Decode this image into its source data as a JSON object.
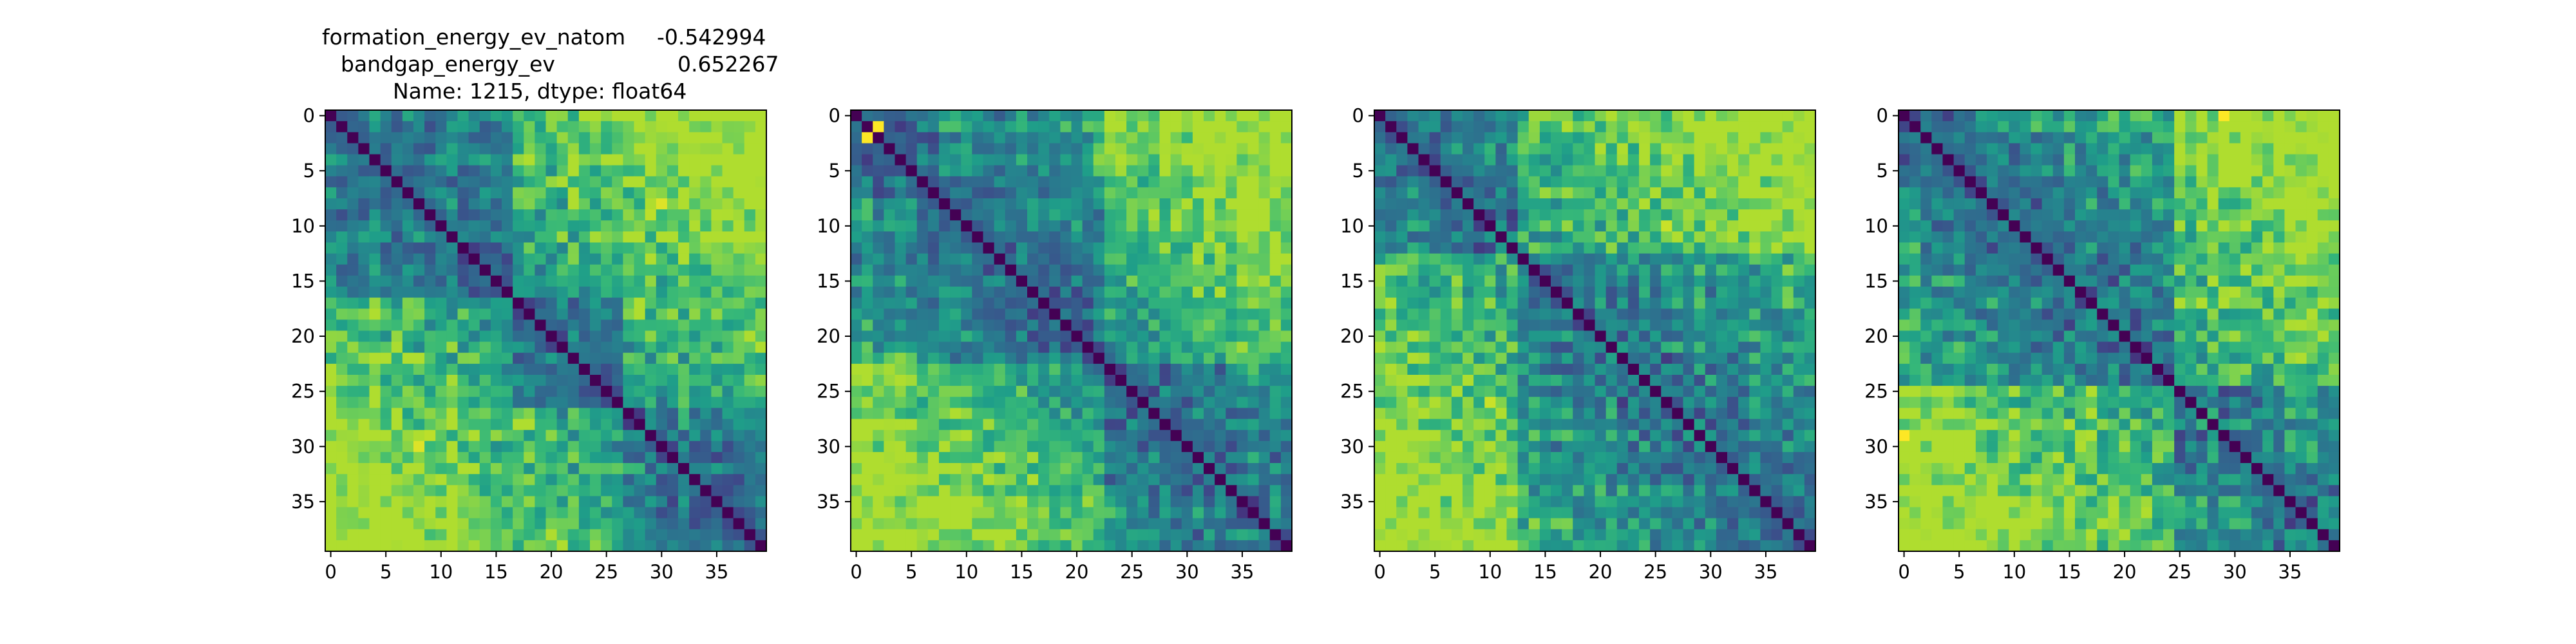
{
  "title": {
    "line1_label": "formation_energy_ev_natom",
    "line1_value": "-0.542994",
    "line2_label": "bandgap_energy_ev",
    "line2_value": "0.652267",
    "line3": "Name: 1215, dtype: float64"
  },
  "colormap": {
    "name": "viridis",
    "stops": [
      "#440154",
      "#482878",
      "#3e4989",
      "#31688e",
      "#26828e",
      "#1f9e89",
      "#35b779",
      "#6ece58",
      "#b5de2b",
      "#fde725"
    ]
  },
  "chart_data": [
    {
      "type": "heatmap",
      "size": 40,
      "diagonal": 0,
      "vrange": [
        0,
        1
      ],
      "seed": 1215,
      "xticks": [
        "0",
        "5",
        "10",
        "15",
        "20",
        "25",
        "30",
        "35"
      ],
      "yticks": [
        "0",
        "5",
        "10",
        "15",
        "20",
        "25",
        "30",
        "35"
      ],
      "block_boundaries": [
        17,
        27
      ],
      "hotspots": [
        {
          "row": 8,
          "col": 30,
          "value": 0.95
        },
        {
          "row": 29,
          "col": 9,
          "value": 0.9
        }
      ]
    },
    {
      "type": "heatmap",
      "size": 40,
      "diagonal": 0,
      "vrange": [
        0,
        1
      ],
      "seed": 2417,
      "xticks": [
        "0",
        "5",
        "10",
        "15",
        "20",
        "25",
        "30",
        "35"
      ],
      "yticks": [
        "0",
        "5",
        "10",
        "15",
        "20",
        "25",
        "30",
        "35"
      ],
      "block_boundaries": [
        23
      ],
      "hotspots": [
        {
          "row": 1,
          "col": 2,
          "value": 1.0
        },
        {
          "row": 2,
          "col": 1,
          "value": 1.0
        }
      ]
    },
    {
      "type": "heatmap",
      "size": 40,
      "diagonal": 0,
      "vrange": [
        0,
        1
      ],
      "seed": 3619,
      "xticks": [
        "0",
        "5",
        "10",
        "15",
        "20",
        "25",
        "30",
        "35"
      ],
      "yticks": [
        "0",
        "5",
        "10",
        "15",
        "20",
        "25",
        "30",
        "35"
      ],
      "block_boundaries": [
        13
      ],
      "hotspots": [
        {
          "row": 10,
          "col": 26,
          "value": 0.92
        },
        {
          "row": 26,
          "col": 10,
          "value": 0.92
        }
      ]
    },
    {
      "type": "heatmap",
      "size": 40,
      "diagonal": 0,
      "vrange": [
        0,
        1
      ],
      "seed": 4821,
      "xticks": [
        "0",
        "5",
        "10",
        "15",
        "20",
        "25",
        "30",
        "35"
      ],
      "yticks": [
        "0",
        "5",
        "10",
        "15",
        "20",
        "25",
        "30",
        "35"
      ],
      "block_boundaries": [
        25
      ],
      "hotspots": [
        {
          "row": 0,
          "col": 29,
          "value": 1.0
        },
        {
          "row": 29,
          "col": 0,
          "value": 1.0
        }
      ]
    }
  ]
}
